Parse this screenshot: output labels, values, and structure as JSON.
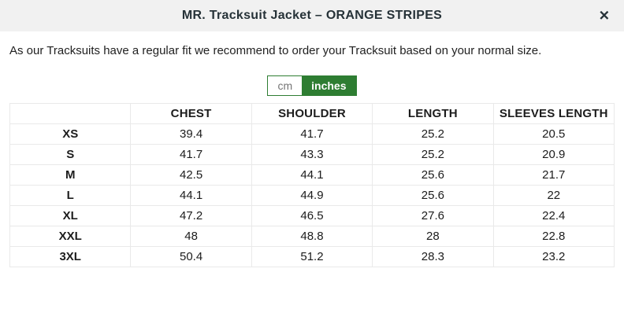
{
  "modal": {
    "title": "MR. Tracksuit Jacket – ORANGE STRIPES",
    "close_glyph": "✕"
  },
  "description": "As our Tracksuits have a regular fit we recommend to order your Tracksuit based on your normal size.",
  "unit_toggle": {
    "options": [
      {
        "label": "cm",
        "selected": false
      },
      {
        "label": "inches",
        "selected": true
      }
    ]
  },
  "colors": {
    "accent_green": "#2e7d32",
    "header_bg": "#f1f1f1",
    "table_border": "#e9e9e9",
    "text": "#212121"
  },
  "size_table": {
    "headers": [
      "",
      "CHEST",
      "SHOULDER",
      "LENGTH",
      "SLEEVES LENGTH"
    ],
    "rows": [
      {
        "size": "XS",
        "chest": "39.4",
        "shoulder": "41.7",
        "length": "25.2",
        "sleeves": "20.5"
      },
      {
        "size": "S",
        "chest": "41.7",
        "shoulder": "43.3",
        "length": "25.2",
        "sleeves": "20.9"
      },
      {
        "size": "M",
        "chest": "42.5",
        "shoulder": "44.1",
        "length": "25.6",
        "sleeves": "21.7"
      },
      {
        "size": "L",
        "chest": "44.1",
        "shoulder": "44.9",
        "length": "25.6",
        "sleeves": "22"
      },
      {
        "size": "XL",
        "chest": "47.2",
        "shoulder": "46.5",
        "length": "27.6",
        "sleeves": "22.4"
      },
      {
        "size": "XXL",
        "chest": "48",
        "shoulder": "48.8",
        "length": "28",
        "sleeves": "22.8"
      },
      {
        "size": "3XL",
        "chest": "50.4",
        "shoulder": "51.2",
        "length": "28.3",
        "sleeves": "23.2"
      }
    ]
  }
}
